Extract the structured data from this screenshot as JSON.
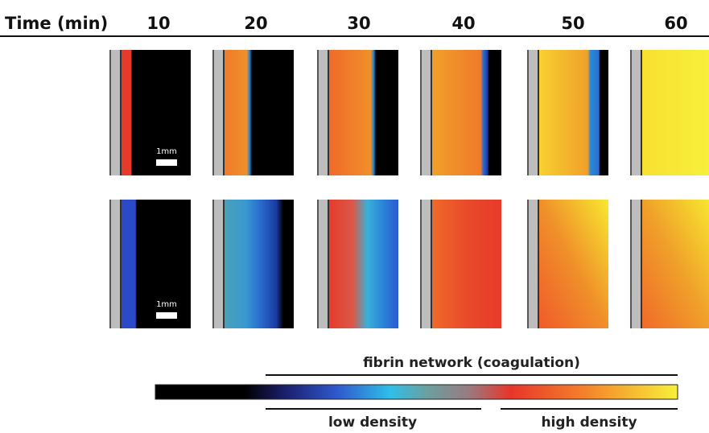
{
  "header": {
    "label": "Time (min)",
    "times": [
      10,
      20,
      30,
      40,
      50,
      60
    ]
  },
  "rows": [
    {
      "scale_bar": "1mm"
    },
    {
      "scale_bar": "1mm"
    }
  ],
  "colorbar": {
    "title": "fibrin network (coagulation)",
    "low": "low density",
    "high": "high density"
  }
}
